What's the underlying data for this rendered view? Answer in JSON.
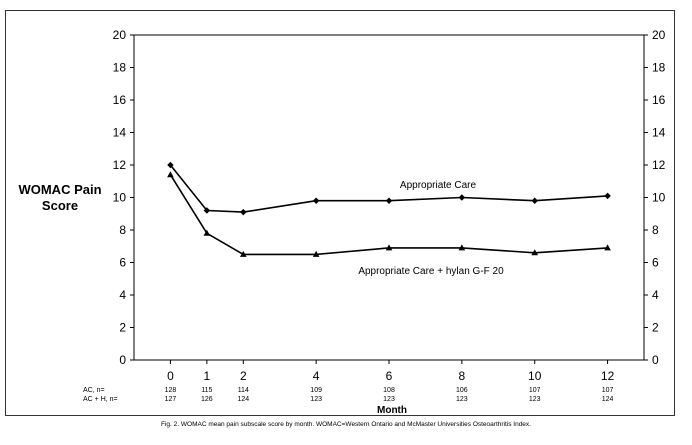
{
  "caption": "Fig. 2. WOMAC mean pain subscale score by month. WOMAC=Western Ontario and McMaster Universities Osteoarthritis Index.",
  "chart_data": {
    "type": "line",
    "title": "",
    "ylabel_lines": [
      "WOMAC Pain",
      "Score"
    ],
    "xlabel": "Month",
    "x": [
      0,
      1,
      2,
      4,
      6,
      8,
      10,
      12
    ],
    "xlim": [
      -1,
      13
    ],
    "ylim": [
      0,
      20
    ],
    "y_ticks": [
      0,
      2,
      4,
      6,
      8,
      10,
      12,
      14,
      16,
      18,
      20
    ],
    "x_ticks": [
      0,
      1,
      2,
      4,
      6,
      8,
      10,
      12
    ],
    "grid": false,
    "series": [
      {
        "name": "Appropriate Care",
        "marker": "diamond",
        "color": "#000000",
        "values": [
          12.0,
          9.2,
          9.1,
          9.8,
          9.8,
          10.0,
          9.8,
          10.1
        ]
      },
      {
        "name": "Appropriate Care + hylan G-F 20",
        "marker": "triangle",
        "color": "#000000",
        "values": [
          11.4,
          7.8,
          6.5,
          6.5,
          6.9,
          6.9,
          6.6,
          6.9
        ]
      }
    ],
    "n_table": {
      "rows": [
        {
          "label": "AC, n=",
          "values": [
            "128",
            "115",
            "114",
            "109",
            "108",
            "106",
            "107",
            "107"
          ]
        },
        {
          "label": "AC + H, n=",
          "values": [
            "127",
            "126",
            "124",
            "123",
            "123",
            "123",
            "123",
            "124"
          ]
        }
      ]
    }
  }
}
